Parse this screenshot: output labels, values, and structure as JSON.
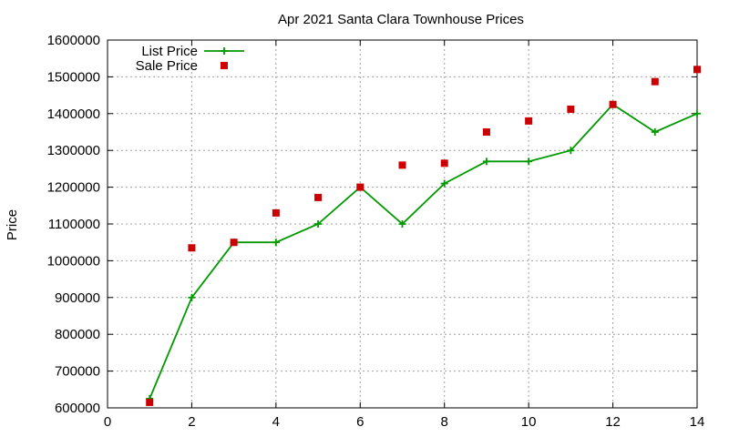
{
  "chart_data": {
    "type": "line",
    "title": "Apr 2021 Santa Clara Townhouse Prices",
    "xlabel": "",
    "ylabel": "Price",
    "xlim": [
      0,
      14
    ],
    "ylim": [
      600000,
      1600000
    ],
    "x_ticks": [
      0,
      2,
      4,
      6,
      8,
      10,
      12,
      14
    ],
    "y_ticks": [
      600000,
      700000,
      800000,
      900000,
      1000000,
      1100000,
      1200000,
      1300000,
      1400000,
      1500000,
      1600000
    ],
    "grid": true,
    "legend_position": "top-left",
    "series": [
      {
        "name": "List Price",
        "style": "lines+points",
        "marker": "plus",
        "color": "#009900",
        "x": [
          1,
          2,
          3,
          4,
          5,
          6,
          7,
          8,
          9,
          10,
          11,
          12,
          13,
          14
        ],
        "y": [
          625000,
          900000,
          1050000,
          1050000,
          1100000,
          1200000,
          1100000,
          1210000,
          1270000,
          1270000,
          1300000,
          1425000,
          1350000,
          1400000
        ]
      },
      {
        "name": "Sale Price",
        "style": "points",
        "marker": "square",
        "color": "#cc0000",
        "x": [
          1,
          2,
          3,
          4,
          5,
          6,
          7,
          8,
          9,
          10,
          11,
          12,
          13,
          14
        ],
        "y": [
          615000,
          1035000,
          1050000,
          1130000,
          1172000,
          1200000,
          1260000,
          1265000,
          1350000,
          1380000,
          1412000,
          1425000,
          1487000,
          1520000
        ]
      }
    ]
  }
}
